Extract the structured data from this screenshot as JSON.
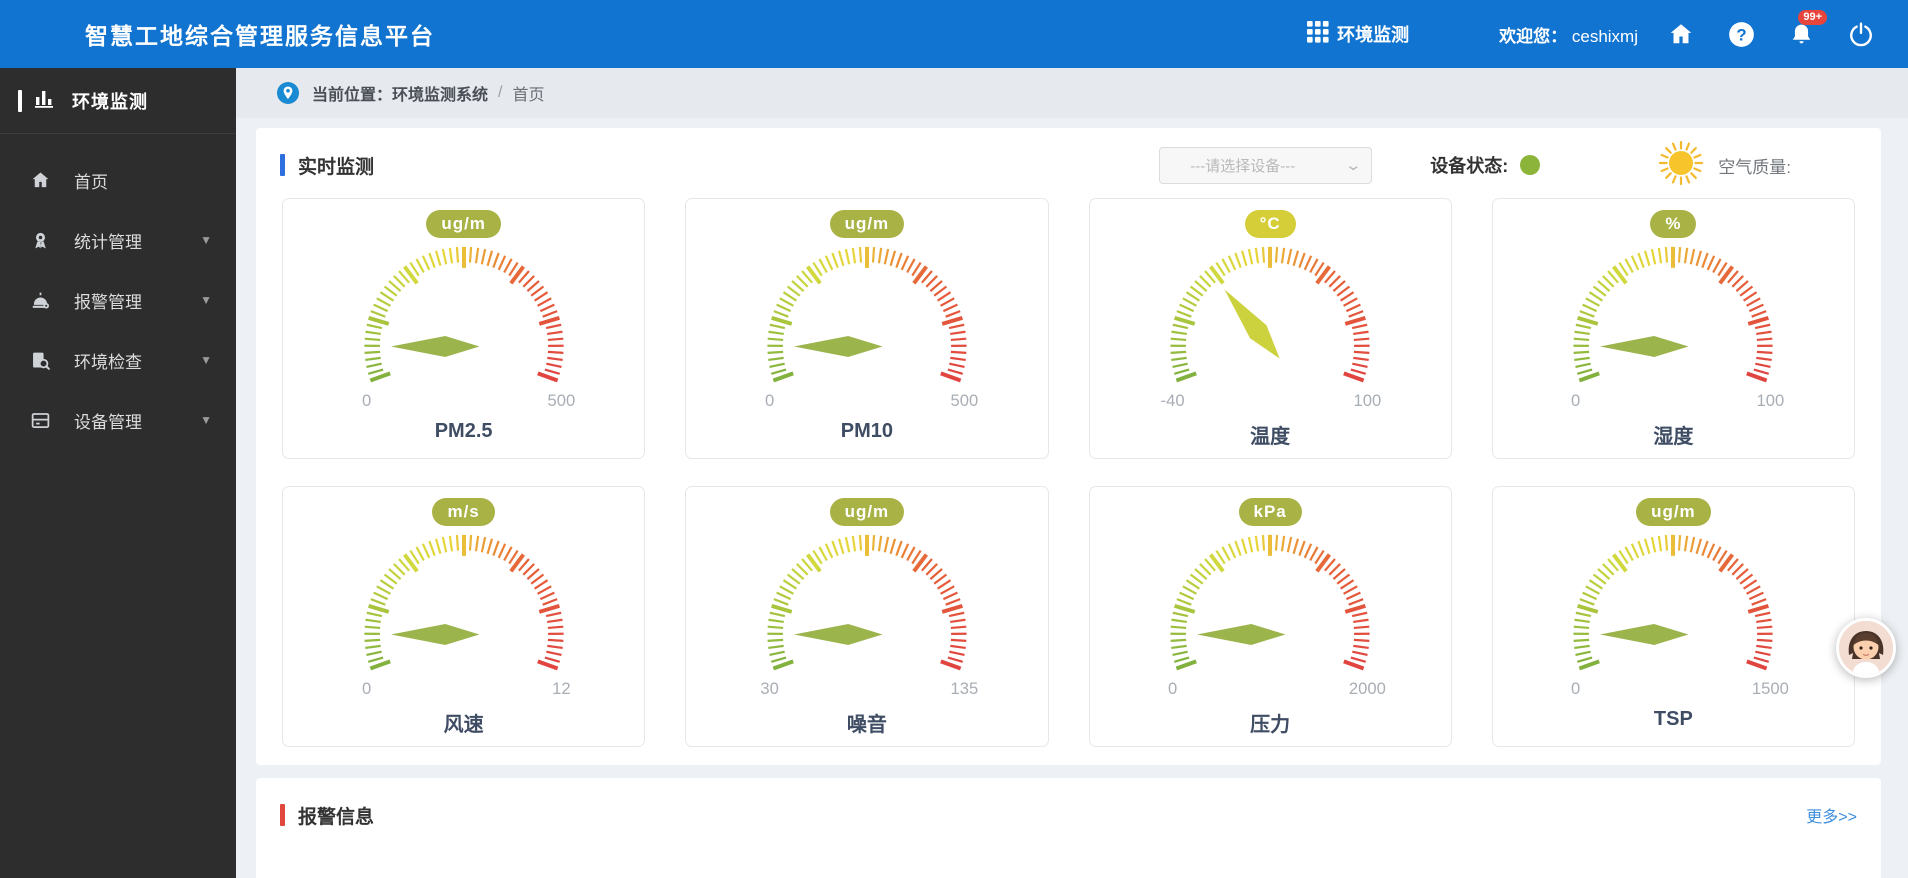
{
  "top_bar": {
    "title": "智慧工地综合管理服务信息平台",
    "module_label": "环境监测",
    "welcome_label": "欢迎您：",
    "username": "ceshixmj",
    "notification_badge": "99+"
  },
  "sidebar": {
    "brand": "环境监测",
    "items": [
      {
        "label": "首页",
        "icon": "home-icon",
        "expandable": false
      },
      {
        "label": "统计管理",
        "icon": "stats-icon",
        "expandable": true
      },
      {
        "label": "报警管理",
        "icon": "alarm-icon",
        "expandable": true
      },
      {
        "label": "环境检查",
        "icon": "inspect-icon",
        "expandable": true
      },
      {
        "label": "设备管理",
        "icon": "device-icon",
        "expandable": true
      }
    ]
  },
  "breadcrumb": {
    "prefix": "当前位置：",
    "system": "环境监测系统",
    "separator": "/",
    "page": "首页"
  },
  "realtime": {
    "title": "实时监测",
    "device_placeholder": "---请选择设备---",
    "status_label": "设备状态:",
    "status_color": "#8cb43a",
    "air_label": "空气质量:"
  },
  "chart_data": [
    {
      "type": "gauge",
      "title": "PM2.5",
      "unit": "ug/m",
      "min": 0,
      "max": 500,
      "value": 0,
      "badge_color": "#a9b345",
      "needle_color": "#9cb44c"
    },
    {
      "type": "gauge",
      "title": "PM10",
      "unit": "ug/m",
      "min": 0,
      "max": 500,
      "value": 0,
      "badge_color": "#a9b345",
      "needle_color": "#9cb44c"
    },
    {
      "type": "gauge",
      "title": "温度",
      "unit": "°C",
      "min": -40,
      "max": 100,
      "value": 0,
      "badge_color": "#d5ce39",
      "needle_color": "#ccd13e"
    },
    {
      "type": "gauge",
      "title": "湿度",
      "unit": "%",
      "min": 0,
      "max": 100,
      "value": 0,
      "badge_color": "#a9b345",
      "needle_color": "#9cb44c"
    },
    {
      "type": "gauge",
      "title": "风速",
      "unit": "m/s",
      "min": 0,
      "max": 12,
      "value": 0,
      "badge_color": "#a9b345",
      "needle_color": "#9cb44c"
    },
    {
      "type": "gauge",
      "title": "噪音",
      "unit": "ug/m",
      "min": 30,
      "max": 135,
      "value": 30,
      "badge_color": "#a9b345",
      "needle_color": "#9cb44c"
    },
    {
      "type": "gauge",
      "title": "压力",
      "unit": "kPa",
      "min": 0,
      "max": 2000,
      "value": 0,
      "badge_color": "#a9b345",
      "needle_color": "#9cb44c"
    },
    {
      "type": "gauge",
      "title": "TSP",
      "unit": "ug/m",
      "min": 0,
      "max": 1500,
      "value": 0,
      "badge_color": "#a9b345",
      "needle_color": "#9cb44c"
    }
  ],
  "alarm": {
    "title": "报警信息",
    "more": "更多>>"
  }
}
